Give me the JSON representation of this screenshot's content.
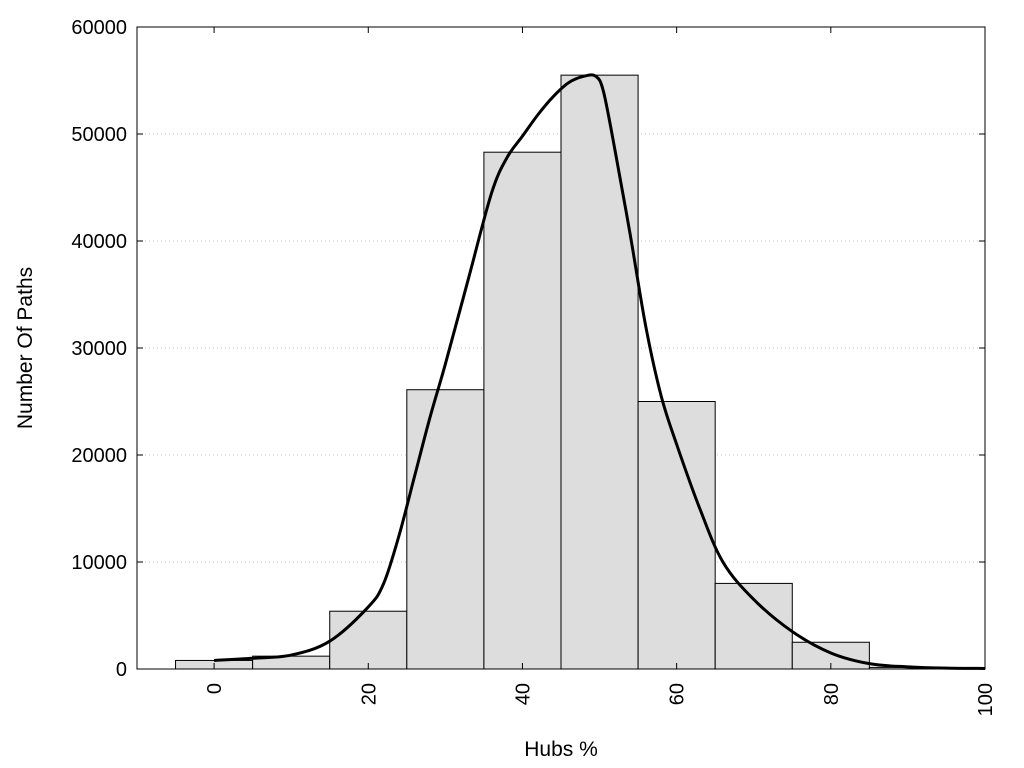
{
  "chart_data": {
    "type": "bar",
    "subtype": "histogram_with_density_curve",
    "title": "",
    "xlabel": "Hubs %",
    "ylabel": "Number Of Paths",
    "xlim": [
      -10,
      100
    ],
    "ylim": [
      0,
      60000
    ],
    "x_ticks": [
      0,
      20,
      40,
      60,
      80,
      100
    ],
    "y_ticks": [
      0,
      10000,
      20000,
      30000,
      40000,
      50000,
      60000
    ],
    "grid": "horizontal dotted",
    "bar_color": "#dddddd",
    "bins": [
      {
        "center": 0,
        "width": 10,
        "value": 800
      },
      {
        "center": 10,
        "width": 10,
        "value": 1200
      },
      {
        "center": 20,
        "width": 10,
        "value": 5400
      },
      {
        "center": 30,
        "width": 10,
        "value": 26100
      },
      {
        "center": 40,
        "width": 10,
        "value": 48300
      },
      {
        "center": 50,
        "width": 10,
        "value": 55500
      },
      {
        "center": 60,
        "width": 10,
        "value": 25000
      },
      {
        "center": 70,
        "width": 10,
        "value": 8000
      },
      {
        "center": 80,
        "width": 10,
        "value": 2500
      },
      {
        "center": 90,
        "width": 10,
        "value": 150
      }
    ],
    "curve": {
      "x": [
        0,
        5,
        10,
        15,
        20,
        22,
        24,
        26,
        28,
        30,
        33,
        36,
        38,
        40,
        42,
        44,
        46,
        48,
        49.5,
        50.5,
        52,
        54,
        56,
        58,
        60,
        63,
        66,
        70,
        75,
        80,
        85,
        90,
        95,
        100
      ],
      "y": [
        800,
        1000,
        1300,
        2600,
        5800,
        8000,
        12500,
        18000,
        23500,
        28500,
        36500,
        44500,
        47800,
        49800,
        51800,
        53500,
        54800,
        55400,
        55400,
        54000,
        48500,
        40500,
        32000,
        25500,
        21000,
        15000,
        10000,
        6500,
        3500,
        1500,
        500,
        200,
        80,
        50
      ]
    }
  }
}
